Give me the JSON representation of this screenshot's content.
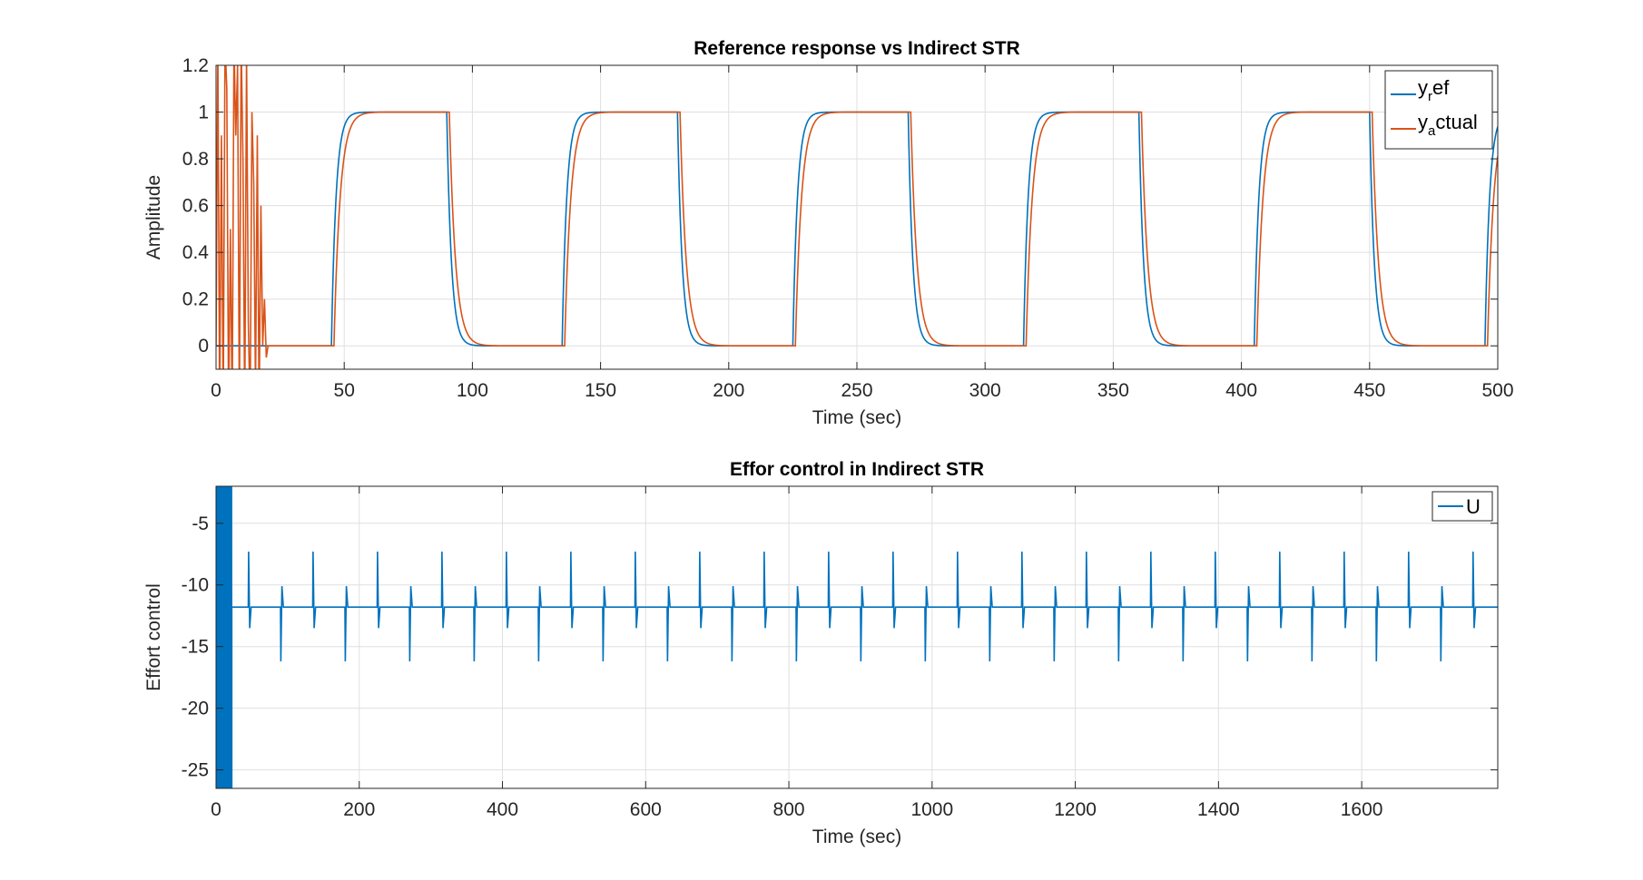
{
  "figure": {
    "background": "#ffffff",
    "grid_color": "#dfdfdf",
    "axis_color": "#262626"
  },
  "chart_data": [
    {
      "type": "line",
      "title": "Reference response vs Indirect STR",
      "xlabel": "Time (sec)",
      "ylabel": "Amplitude",
      "xlim": [
        0,
        500
      ],
      "ylim": [
        -0.1,
        1.2
      ],
      "grid": true,
      "legend_position": "top-right",
      "x_ticks": [
        0,
        50,
        100,
        150,
        200,
        250,
        300,
        350,
        400,
        450,
        500
      ],
      "y_ticks": [
        0,
        0.2,
        0.4,
        0.6,
        0.8,
        1,
        1.2
      ],
      "y_tick_labels": [
        "0",
        "0.2",
        "0.4",
        "0.6",
        "0.8",
        "1",
        "1.2"
      ],
      "square_wave": {
        "period": 180,
        "first_rise": 45,
        "high_duration": 45,
        "low": 0,
        "high": 1
      },
      "series": [
        {
          "legend_base": "y",
          "legend_sub": "r",
          "legend_rest": "ef",
          "color": "#0072BD",
          "time_constant": 1.8,
          "delay": 0
        },
        {
          "legend_base": "y",
          "legend_sub": "a",
          "legend_rest": "ctual",
          "color": "#D95319",
          "time_constant": 2.4,
          "delay": 1,
          "initial_transient_until": 21
        }
      ]
    },
    {
      "type": "line",
      "title": "Effor control in Indirect STR",
      "xlabel": "Time (sec)",
      "ylabel": "Effort control",
      "xlim": [
        0,
        1790
      ],
      "ylim": [
        -26.5,
        -2
      ],
      "grid": true,
      "legend_position": "top-right",
      "x_ticks": [
        0,
        200,
        400,
        600,
        800,
        1000,
        1200,
        1400,
        1600
      ],
      "y_ticks": [
        -5,
        -10,
        -15,
        -20,
        -25
      ],
      "y_tick_labels": [
        "-5",
        "-10",
        "-15",
        "-20",
        "-25"
      ],
      "spike_train": {
        "baseline": -11.8,
        "first_spike": 45,
        "spacing": 45,
        "up_peak": -7.3,
        "up_undershoot": -13.5,
        "down_peak": -16.2,
        "down_overshoot": -10.1,
        "initial_transient_until": 22
      },
      "series": [
        {
          "legend": "U",
          "color": "#0072BD"
        }
      ]
    }
  ]
}
